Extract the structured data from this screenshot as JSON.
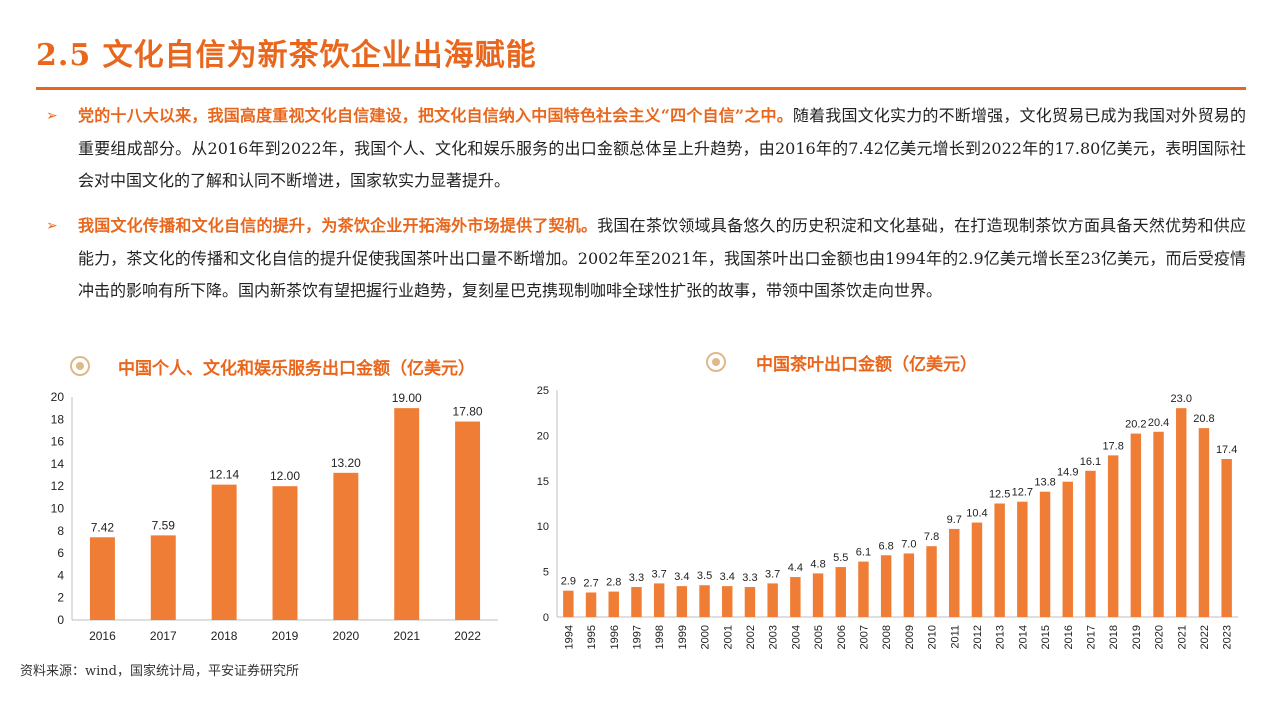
{
  "page": {
    "title": "2.5 文化自信为新茶饮企业出海赋能",
    "source": "资料来源：wind，国家统计局，平安证券研究所"
  },
  "bullets": [
    {
      "highlight": "党的十八大以来，我国高度重视文化自信建设，把文化自信纳入中国特色社会主义“四个自信”之中。",
      "text": "随着我国文化实力的不断增强，文化贸易已成为我国对外贸易的重要组成部分。从2016年到2022年，我国个人、文化和娱乐服务的出口金额总体呈上升趋势，由2016年的7.42亿美元增长到2022年的17.80亿美元，表明国际社会对中国文化的了解和认同不断增进，国家软实力显著提升。"
    },
    {
      "highlight": "我国文化传播和文化自信的提升，为茶饮企业开拓海外市场提供了契机。",
      "text": "我国在茶饮领域具备悠久的历史积淀和文化基础，在打造现制茶饮方面具备天然优势和供应能力，茶文化的传播和文化自信的提升促使我国茶叶出口量不断增加。2002年至2021年，我国茶叶出口金额也由1994年的2.9亿美元增长至23亿美元，而后受疫情冲击的影响有所下降。国内新茶饮有望把握行业趋势，复刻星巴克携现制咖啡全球性扩张的故事，带领中国茶饮走向世界。"
    }
  ],
  "colors": {
    "accent": "#e8671c",
    "bar": "#ef7d35"
  },
  "chart_data": [
    {
      "type": "bar",
      "title": "中国个人、文化和娱乐服务出口金额（亿美元）",
      "categories": [
        "2016",
        "2017",
        "2018",
        "2019",
        "2020",
        "2021",
        "2022"
      ],
      "values": [
        7.42,
        7.59,
        12.14,
        12.0,
        13.2,
        19.0,
        17.8
      ],
      "labels": [
        "7.42",
        "7.59",
        "12.14",
        "12.00",
        "13.20",
        "19.00",
        "17.80"
      ],
      "ylim": [
        0,
        20
      ],
      "yticks": [
        0,
        2,
        4,
        6,
        8,
        10,
        12,
        14,
        16,
        18,
        20
      ],
      "grid": false,
      "legend": "none"
    },
    {
      "type": "bar",
      "title": "中国茶叶出口金额（亿美元）",
      "categories": [
        "1994",
        "1995",
        "1996",
        "1997",
        "1998",
        "1999",
        "2000",
        "2001",
        "2002",
        "2003",
        "2004",
        "2005",
        "2006",
        "2007",
        "2008",
        "2009",
        "2010",
        "2011",
        "2012",
        "2013",
        "2014",
        "2015",
        "2016",
        "2017",
        "2018",
        "2019",
        "2020",
        "2021",
        "2022",
        "2023"
      ],
      "values": [
        2.9,
        2.7,
        2.8,
        3.3,
        3.7,
        3.4,
        3.5,
        3.4,
        3.3,
        3.7,
        4.4,
        4.8,
        5.5,
        6.1,
        6.8,
        7.0,
        7.8,
        9.7,
        10.4,
        12.5,
        12.7,
        13.8,
        14.9,
        16.1,
        17.8,
        20.2,
        20.4,
        23.0,
        20.8,
        17.4
      ],
      "labels": [
        "2.9",
        "2.7",
        "2.8",
        "3.3",
        "3.7",
        "3.4",
        "3.5",
        "3.4",
        "3.3",
        "3.7",
        "4.4",
        "4.8",
        "5.5",
        "6.1",
        "6.8",
        "7.0",
        "7.8",
        "9.7",
        "10.4",
        "12.5",
        "12.7",
        "13.8",
        "14.9",
        "16.1",
        "17.8",
        "20.2",
        "20.4",
        "23.0",
        "20.8",
        "17.4"
      ],
      "ylim": [
        0,
        25
      ],
      "yticks": [
        0,
        5,
        10,
        15,
        20,
        25
      ],
      "grid": false,
      "legend": "none"
    }
  ]
}
